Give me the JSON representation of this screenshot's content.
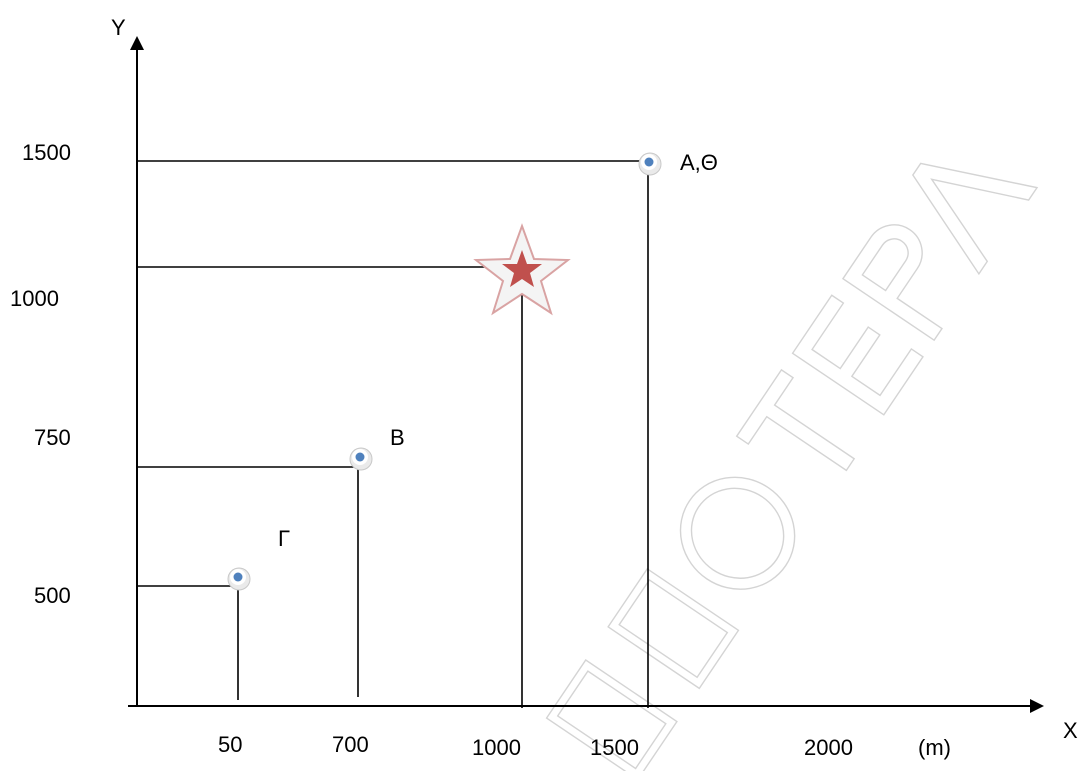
{
  "axes": {
    "x_label": "X",
    "y_label": "Y",
    "x_unit": "(m)",
    "x_ticks": [
      "50",
      "700",
      "1000",
      "1500",
      "2000"
    ],
    "y_ticks": [
      "1500",
      "1000",
      "750",
      "500"
    ]
  },
  "points": [
    {
      "label": "Γ",
      "x": "50",
      "y": "500",
      "icon": "blue-dot-marker"
    },
    {
      "label": "B",
      "x": "700",
      "y": "750",
      "icon": "blue-dot-marker"
    },
    {
      "label": "A,Θ",
      "x": "1500",
      "y": "1500",
      "icon": "blue-dot-marker"
    }
  ],
  "star_point": {
    "x": "1000",
    "y": "1000",
    "icon": "red-star-marker",
    "color": "#c0504d"
  },
  "watermark": {
    "text": "ΗΜΙΟΤΕΡΑ",
    "color": "#d4d4d4"
  }
}
